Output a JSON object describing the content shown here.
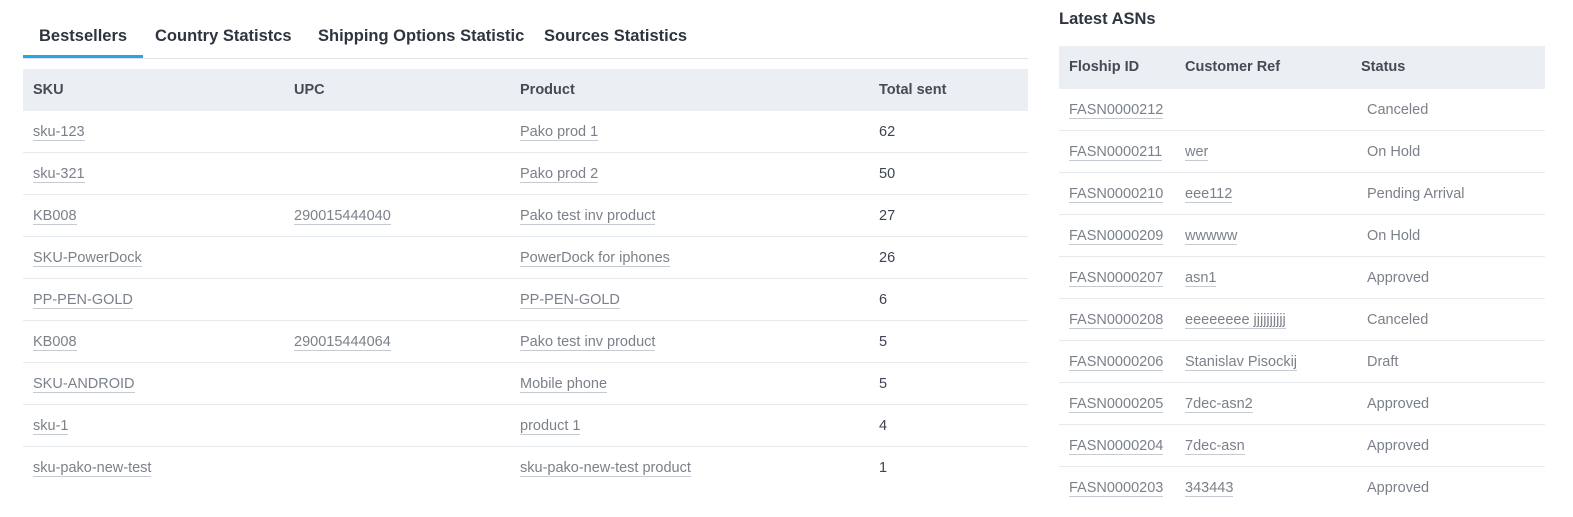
{
  "tabs": [
    {
      "label": "Bestsellers"
    },
    {
      "label": "Country Statistcs"
    },
    {
      "label": "Shipping Options Statistic"
    },
    {
      "label": "Sources Statistics"
    }
  ],
  "bestsellers": {
    "columns": [
      "SKU",
      "UPC",
      "Product",
      "Total sent"
    ],
    "rows": [
      {
        "sku": "sku-123",
        "upc": "",
        "product": "Pako prod 1",
        "total": "62"
      },
      {
        "sku": "sku-321",
        "upc": "",
        "product": "Pako prod 2",
        "total": "50"
      },
      {
        "sku": "KB008",
        "upc": "290015444040",
        "product": "Pako test inv product",
        "total": "27"
      },
      {
        "sku": "SKU-PowerDock",
        "upc": "",
        "product": "PowerDock for iphones",
        "total": "26"
      },
      {
        "sku": "PP-PEN-GOLD",
        "upc": "",
        "product": "PP-PEN-GOLD",
        "total": "6"
      },
      {
        "sku": "KB008",
        "upc": "290015444064",
        "product": "Pako test inv product",
        "total": "5"
      },
      {
        "sku": "SKU-ANDROID",
        "upc": "",
        "product": "Mobile phone",
        "total": "5"
      },
      {
        "sku": "sku-1",
        "upc": "",
        "product": "product 1",
        "total": "4"
      },
      {
        "sku": "sku-pako-new-test",
        "upc": "",
        "product": "sku-pako-new-test product",
        "total": "1"
      }
    ]
  },
  "latest_asns": {
    "title": "Latest ASNs",
    "columns": [
      "Floship ID",
      "Customer Ref",
      "Status"
    ],
    "rows": [
      {
        "id": "FASN0000212",
        "ref": "",
        "status": "Canceled"
      },
      {
        "id": "FASN0000211",
        "ref": "wer",
        "status": "On Hold"
      },
      {
        "id": "FASN0000210",
        "ref": "eee112",
        "status": "Pending Arrival"
      },
      {
        "id": "FASN0000209",
        "ref": "wwwww",
        "status": "On Hold"
      },
      {
        "id": "FASN0000207",
        "ref": "asn1",
        "status": "Approved"
      },
      {
        "id": "FASN0000208",
        "ref": "eeeeeeee jjjjjjjjjj",
        "status": "Canceled"
      },
      {
        "id": "FASN0000206",
        "ref": "Stanislav Pisockij",
        "status": "Draft"
      },
      {
        "id": "FASN0000205",
        "ref": "7dec-asn2",
        "status": "Approved"
      },
      {
        "id": "FASN0000204",
        "ref": "7dec-asn",
        "status": "Approved"
      },
      {
        "id": "FASN0000203",
        "ref": "343443",
        "status": "Approved"
      }
    ]
  }
}
